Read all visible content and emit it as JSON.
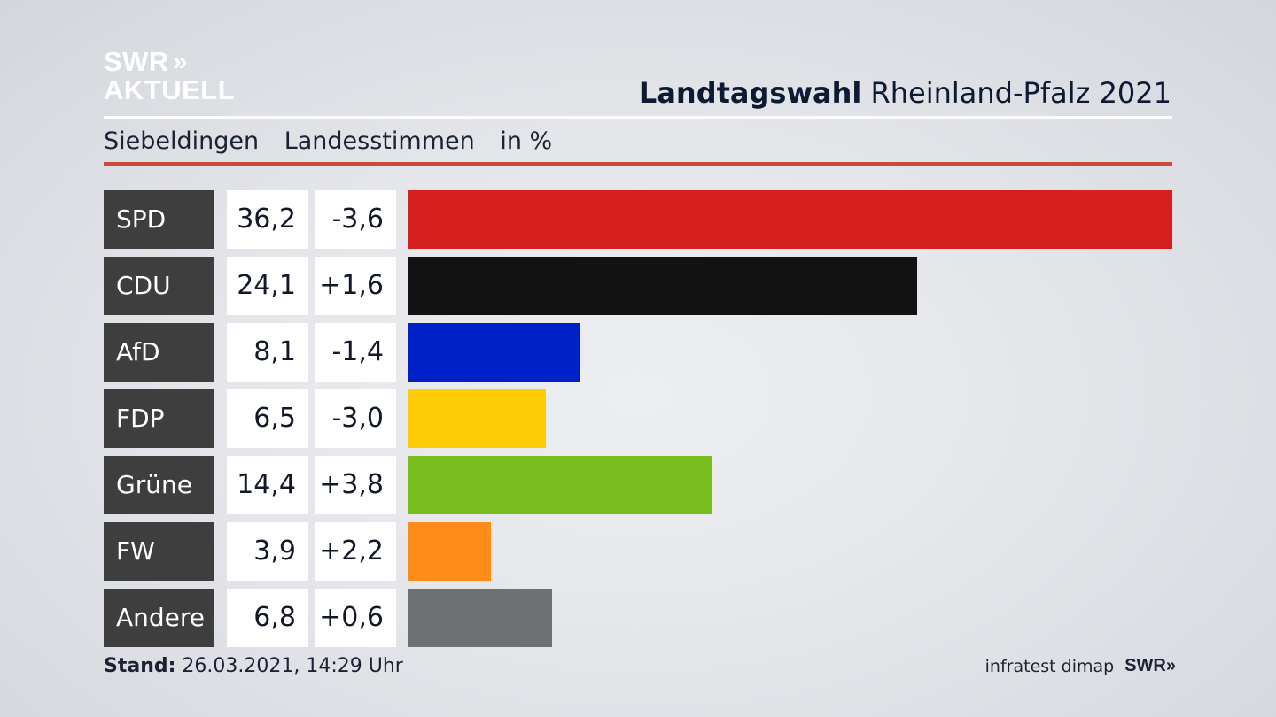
{
  "logo": {
    "line1": "SWR",
    "chevrons": "»",
    "line2": "AKTUELL"
  },
  "header": {
    "title_bold": "Landtagswahl",
    "title_rest": "Rheinland-Pfalz 2021"
  },
  "subtitle": {
    "place": "Siebeldingen",
    "vote_type": "Landesstimmen",
    "unit": "in %"
  },
  "colors": {
    "accent_rule": "#c94a3c",
    "label_bg": "#3e3e3e"
  },
  "chart_data": {
    "type": "bar",
    "orientation": "horizontal",
    "categories": [
      "SPD",
      "CDU",
      "AfD",
      "FDP",
      "Grüne",
      "FW",
      "Andere"
    ],
    "values": [
      36.2,
      24.1,
      8.1,
      6.5,
      14.4,
      3.9,
      6.8
    ],
    "value_labels": [
      "36,2",
      "24,1",
      "8,1",
      "6,5",
      "14,4",
      "3,9",
      "6,8"
    ],
    "changes": [
      -3.6,
      1.6,
      -1.4,
      -3.0,
      3.8,
      2.2,
      0.6
    ],
    "change_labels": [
      "-3,6",
      "+1,6",
      "-1,4",
      "-3,0",
      "+3,8",
      "+2,2",
      "+0,6"
    ],
    "colors": [
      "#d62020",
      "#121212",
      "#0020c8",
      "#ffcc08",
      "#78bc1e",
      "#ff8c1a",
      "#6f7072"
    ],
    "xlim": [
      0,
      36.2
    ],
    "grid": false
  },
  "footer": {
    "stand_label": "Stand:",
    "stand_value": "26.03.2021, 14:29 Uhr",
    "source": "infratest dimap",
    "brand": "SWR",
    "brand_chevrons": "»"
  }
}
